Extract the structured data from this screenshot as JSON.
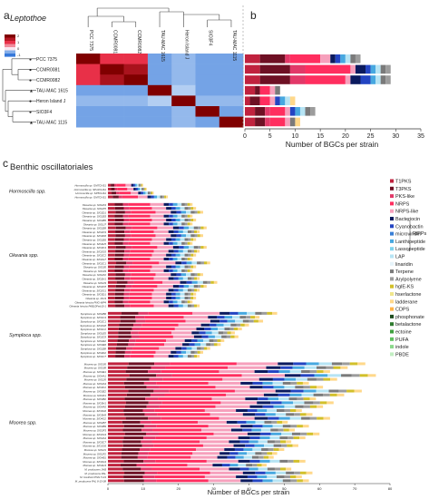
{
  "panel_a": {
    "label": "a",
    "title": "Leptothoe",
    "legend_ticks": [
      "2",
      "1",
      "0",
      "-1"
    ],
    "columns": [
      "PCC 7375",
      "CCMR0081",
      "CCMR0082",
      "TAU-MAC 1615",
      "Heron Island J",
      "SIO3F4",
      "TAU-MAC 1115"
    ],
    "rows": [
      "PCC 7375",
      "CCMR0081",
      "CCMR0082",
      "TAU-MAC 1615",
      "Heron Island J",
      "SIO3F4",
      "TAU-MAC 1115"
    ],
    "row_markers": [
      "●",
      "●",
      "●",
      "▲",
      "●",
      "●",
      "▲"
    ]
  },
  "panel_b": {
    "label": "b"
  },
  "panel_c": {
    "label": "c",
    "title": "Benthic oscillatoriales",
    "group_labels": [
      "Hormoscilla spp.",
      "Okeania spp.",
      "Symploca spp.",
      "Moorea spp."
    ],
    "ripps_label": "RiPPs"
  },
  "legend": {
    "items": [
      {
        "label": "T1PKS",
        "color": "#c0223e"
      },
      {
        "label": "T3PKS",
        "color": "#6e1024"
      },
      {
        "label": "PKS-like",
        "color": "#e23868"
      },
      {
        "label": "NRPS",
        "color": "#ff2e5f"
      },
      {
        "label": "NRPS-like",
        "color": "#f6a0bc"
      },
      {
        "label": "Bacteriocin",
        "color": "#0b1a5e"
      },
      {
        "label": "Cyanobactin",
        "color": "#2344c2"
      },
      {
        "label": "microviridin",
        "color": "#3a7fd6"
      },
      {
        "label": "Lanthipeptide",
        "color": "#47a8e0"
      },
      {
        "label": "Lassopeptide",
        "color": "#7fd3ee"
      },
      {
        "label": "LAP",
        "color": "#b6e4f4"
      },
      {
        "label": "linaridin",
        "color": "#e6f4fa"
      },
      {
        "label": "Terpene",
        "color": "#7a7a7a"
      },
      {
        "label": "Arylpolyene",
        "color": "#9c9c9c"
      },
      {
        "label": "hglE-KS",
        "color": "#d2c02a"
      },
      {
        "label": "hserlactone",
        "color": "#f0e68c"
      },
      {
        "label": "ladderane",
        "color": "#ffd88a"
      },
      {
        "label": "CDPS",
        "color": "#ffb347"
      },
      {
        "label": "phosphonate",
        "color": "#1f4d1f"
      },
      {
        "label": "betalactone",
        "color": "#2f7a2f"
      },
      {
        "label": "ectoine",
        "color": "#3fa03f"
      },
      {
        "label": "PUFA",
        "color": "#5fc15f"
      },
      {
        "label": "indole",
        "color": "#8bd88b"
      },
      {
        "label": "PBDE",
        "color": "#c2eec2"
      }
    ]
  },
  "chart_data": [
    {
      "type": "heatmap",
      "title": "Leptothoe",
      "rows": [
        "PCC 7375",
        "CCMR0081",
        "CCMR0082",
        "TAU-MAC 1615",
        "Heron Island J",
        "SIO3F4",
        "TAU-MAC 1115"
      ],
      "columns": [
        "PCC 7375",
        "CCMR0081",
        "CCMR0082",
        "TAU-MAC 1615",
        "Heron Island J",
        "SIO3F4",
        "TAU-MAC 1115"
      ],
      "color_scale_ticks": [
        2,
        1,
        0,
        -1
      ],
      "values": [
        [
          2.0,
          1.0,
          1.0,
          -0.6,
          -0.4,
          -0.6,
          -0.6
        ],
        [
          1.0,
          2.0,
          1.6,
          -0.6,
          -0.4,
          -0.6,
          -0.6
        ],
        [
          1.0,
          1.6,
          2.0,
          -0.6,
          -0.4,
          -0.6,
          -0.6
        ],
        [
          -0.6,
          -0.6,
          -0.6,
          2.0,
          -0.2,
          -0.6,
          -0.6
        ],
        [
          -0.4,
          -0.4,
          -0.4,
          -0.2,
          2.0,
          -0.4,
          -0.4
        ],
        [
          -0.6,
          -0.6,
          -0.6,
          -0.6,
          -0.4,
          2.0,
          -0.6
        ],
        [
          -0.6,
          -0.6,
          -0.6,
          -0.6,
          -0.4,
          -0.6,
          2.0
        ]
      ]
    },
    {
      "type": "bar",
      "orientation": "horizontal",
      "stacked": true,
      "xlabel": "Number of BGCs per strain",
      "xlim": [
        0,
        35
      ],
      "xticks": [
        0,
        5,
        10,
        15,
        20,
        25,
        30,
        35
      ],
      "categories": [
        "PCC 7375",
        "CCMR0081",
        "CCMR0082",
        "TAU-MAC 1615",
        "Heron Island J",
        "SIO3F4",
        "TAU-MAC 1115"
      ],
      "series": [
        {
          "name": "T1PKS",
          "values": [
            3,
            3,
            3,
            2,
            1,
            2,
            2
          ]
        },
        {
          "name": "T3PKS",
          "values": [
            5,
            6,
            6,
            1,
            2,
            2,
            2
          ]
        },
        {
          "name": "PKS-like",
          "values": [
            1,
            3,
            3,
            0,
            0,
            1,
            1
          ]
        },
        {
          "name": "NRPS",
          "values": [
            6,
            9,
            8,
            2,
            2,
            3,
            3
          ]
        },
        {
          "name": "NRPS-like",
          "values": [
            2,
            1,
            1,
            1,
            1,
            1,
            1
          ]
        },
        {
          "name": "Bacteriocin",
          "values": [
            1,
            2,
            2,
            0,
            0,
            0,
            0
          ]
        },
        {
          "name": "Cyanobactin",
          "values": [
            1,
            1,
            2,
            0,
            1,
            1,
            0
          ]
        },
        {
          "name": "Lanthipeptide",
          "values": [
            1,
            1,
            1,
            0,
            1,
            1,
            0
          ]
        },
        {
          "name": "LAP",
          "values": [
            1,
            1,
            1,
            0,
            1,
            1,
            0
          ]
        },
        {
          "name": "Terpene",
          "values": [
            1,
            1,
            1,
            1,
            0,
            1,
            1
          ]
        },
        {
          "name": "Arylpolyene",
          "values": [
            1,
            1,
            1,
            0,
            0,
            1,
            0
          ]
        },
        {
          "name": "ladderane",
          "values": [
            0,
            0,
            0,
            0,
            1,
            0,
            1
          ]
        }
      ]
    },
    {
      "type": "bar",
      "orientation": "horizontal",
      "stacked": true,
      "title": "Benthic oscillatoriales",
      "xlabel": "Number of BGCs per strain",
      "xlim": [
        0,
        80
      ],
      "xticks": [
        0,
        10,
        20,
        30,
        40,
        50,
        60,
        70,
        80
      ],
      "groups": [
        {
          "name": "Hormoscilla spp.",
          "categories": [
            "Hormoscilla sp. GM7CHS1",
            "Hormoscilla sp. SP12CHS1",
            "Hormoscilla sp. SP5CHS1",
            "Hormoscilla sp. GM7CHS1"
          ],
          "totals": [
            10,
            11,
            13,
            17
          ]
        },
        {
          "name": "Okeania spp.",
          "categories": [
            "Okeania sp. SIO2F4",
            "Okeania sp. SIO2F5",
            "Okeania sp. SIO2D1",
            "Okeania sp. SIO2B3",
            "Okeania sp. SIO3B5",
            "Okeania sp. SIO1I7",
            "Okeania sp. SIO2B9",
            "Okeania sp. SIO2C9",
            "Okeania sp. SIO2D6",
            "Okeania sp. SIO2E6",
            "Okeania sp. SIO2H5",
            "Okeania sp. SIO3C4",
            "Okeania sp. SIO2G5",
            "Okeania sp. SIO2C2",
            "Okeania sp. SIO2G7",
            "Okeania sp. SIO2C1",
            "Okeania sp. SIO3I5",
            "Okeania sp. SIO3I3",
            "Okeania sp. SIO2F2",
            "Okeania sp. SIO2H1",
            "Okeania sp. SIO2I3",
            "Okeania sp. SIO2C8",
            "Okeania sp. SIO2G1",
            "Okeania sp. SIO3D1",
            "Okeania sp. KIU3",
            "Okeania hirsuta PNG-WP4",
            "Okeania hirsuta PAB10Feb10-1"
          ],
          "totals": [
            24,
            25,
            27,
            24,
            25,
            24,
            28,
            26,
            27,
            25,
            24,
            28,
            26,
            25,
            24,
            29,
            25,
            24,
            27,
            26,
            31,
            28,
            26,
            25,
            25,
            24,
            26
          ]
        },
        {
          "name": "Symploca spp.",
          "categories": [
            "Symploca sp. SIO2B6",
            "Symploca sp. SIO1C4",
            "Symploca sp. SIO2C1",
            "Symploca sp. SIO2G8",
            "Symploca sp. SIO1C2",
            "Symploca sp. SIO1E5",
            "Symploca sp. SIO2C8",
            "Symploca sp. SIO2E2",
            "Symploca sp. SIO3E6",
            "Symploca sp. SIO2B8",
            "Symploca sp. SIO2D2",
            "Symploca sp. SIO1C7"
          ],
          "totals": [
            48,
            43,
            44,
            40,
            38,
            36,
            37,
            33,
            32,
            29,
            27,
            26
          ]
        },
        {
          "name": "Moorea spp.",
          "categories": [
            "Moorea sp. SIO3I5",
            "Moorea sp. SIO3I8",
            "Moorea sp. SIO3E1",
            "Moorea sp. SIO4A1",
            "Moorea sp. SIO2I5",
            "Moorea sp. SIO4A3",
            "Moorea sp. SIO3C2",
            "Moorea sp. SIO3E2",
            "Moorea sp. SIO3F1",
            "Moorea sp. SIO3B2",
            "Moorea sp. SIO3H1",
            "Moorea sp. SIO4A5",
            "Moorea sp. SIO3G6",
            "Moorea sp. SIO3H8",
            "Moorea sp. SIO4G2",
            "Moorea sp. SIO2B7",
            "Moorea sp. SIO3B9",
            "Moorea sp. SIO3F3",
            "Moorea sp. SIO2G3",
            "Moorea sp. SIO4A4",
            "Moorea sp. SIO3C7",
            "Moorea sp. SIO1G6",
            "Moorea sp. SIO2I1",
            "Moorea sp. SIO2F2",
            "Moorea sp. SIO4B1",
            "Moorea sp. SIO4G3",
            "Moorea sp. SIO2H3",
            "M. producens JHB",
            "M. producens PAL",
            "M. bouillonii PNG 5-19",
            "M. producens PAL 8-15-08"
          ],
          "totals": [
            73,
            68,
            63,
            76,
            65,
            57,
            61,
            72,
            67,
            59,
            64,
            61,
            55,
            58,
            63,
            51,
            57,
            53,
            60,
            56,
            52,
            54,
            50,
            48,
            47,
            56,
            45,
            52,
            58,
            55,
            57
          ]
        }
      ]
    }
  ]
}
